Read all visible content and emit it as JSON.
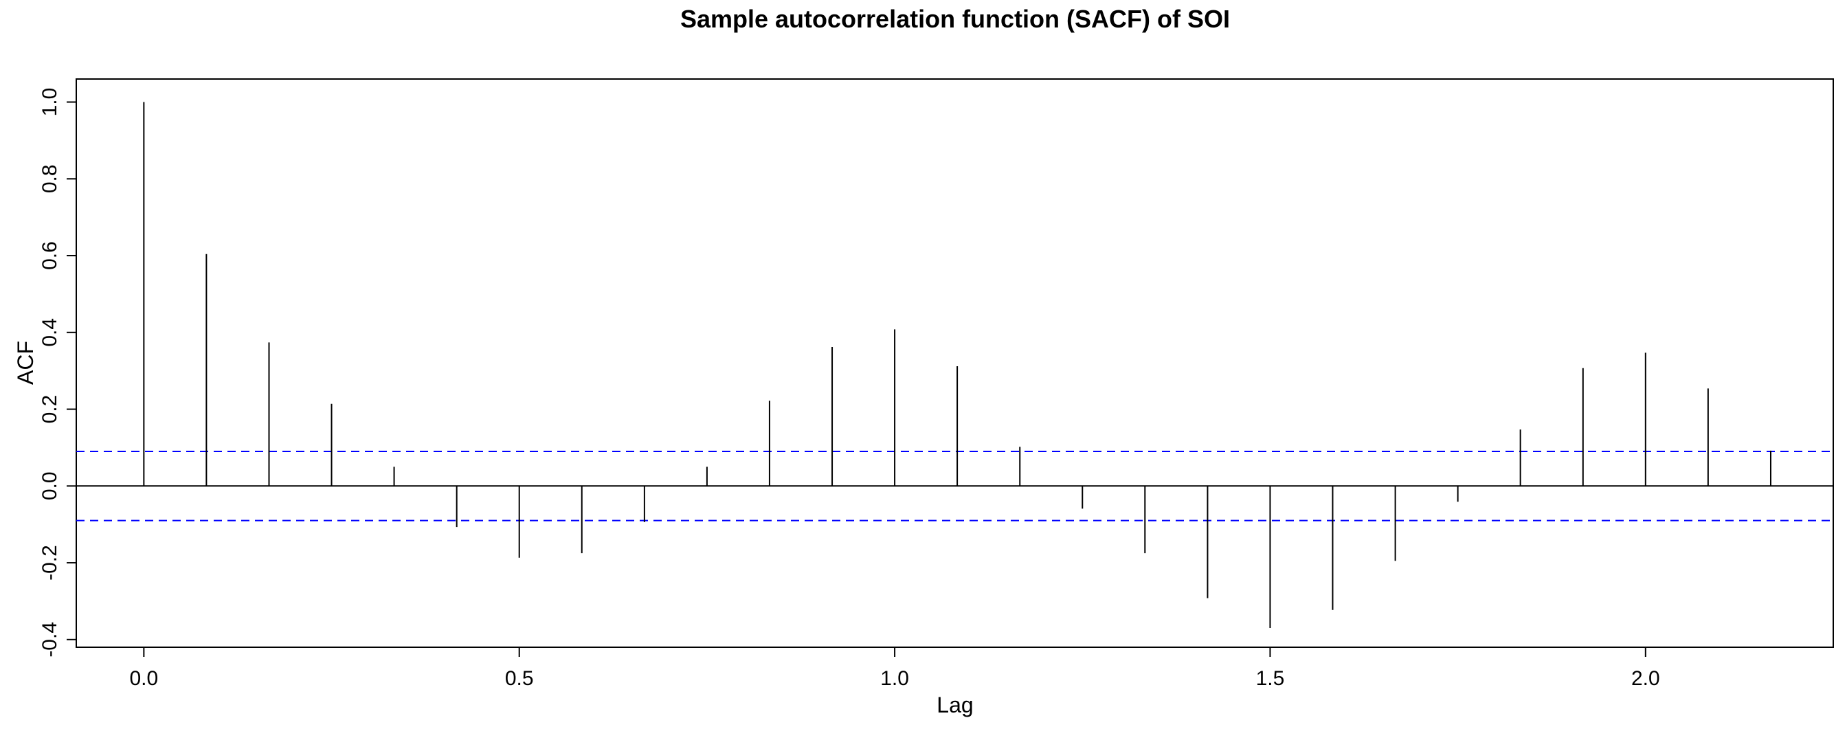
{
  "chart_data": {
    "type": "bar",
    "title": "Sample autocorrelation function (SACF) of SOI",
    "xlabel": "Lag",
    "ylabel": "ACF",
    "xlim": [
      -0.09,
      2.25
    ],
    "ylim": [
      -0.42,
      1.06
    ],
    "xticks": [
      0.0,
      0.5,
      1.0,
      1.5,
      2.0
    ],
    "xtick_labels": [
      "0.0",
      "0.5",
      "1.0",
      "1.5",
      "2.0"
    ],
    "yticks": [
      -0.4,
      -0.2,
      0.0,
      0.2,
      0.4,
      0.6,
      0.8,
      1.0
    ],
    "ytick_labels": [
      "-0.4",
      "-0.2",
      "0.0",
      "0.2",
      "0.4",
      "0.6",
      "0.8",
      "1.0"
    ],
    "confidence_bounds": [
      0.09,
      -0.09
    ],
    "confidence_color": "#0000ff",
    "lags": [
      0.0,
      0.0833,
      0.1667,
      0.25,
      0.3333,
      0.4167,
      0.5,
      0.5833,
      0.6667,
      0.75,
      0.8333,
      0.9167,
      1.0,
      1.0833,
      1.1667,
      1.25,
      1.3333,
      1.4167,
      1.5,
      1.5833,
      1.6667,
      1.75,
      1.8333,
      1.9167,
      2.0,
      2.0833,
      2.1667
    ],
    "values": [
      1.0,
      0.604,
      0.374,
      0.214,
      0.05,
      -0.107,
      -0.187,
      -0.175,
      -0.094,
      0.05,
      0.222,
      0.362,
      0.408,
      0.312,
      0.102,
      -0.059,
      -0.175,
      -0.292,
      -0.37,
      -0.323,
      -0.195,
      -0.041,
      0.147,
      0.307,
      0.347,
      0.254,
      0.092
    ],
    "grid": false,
    "legend": "none"
  }
}
